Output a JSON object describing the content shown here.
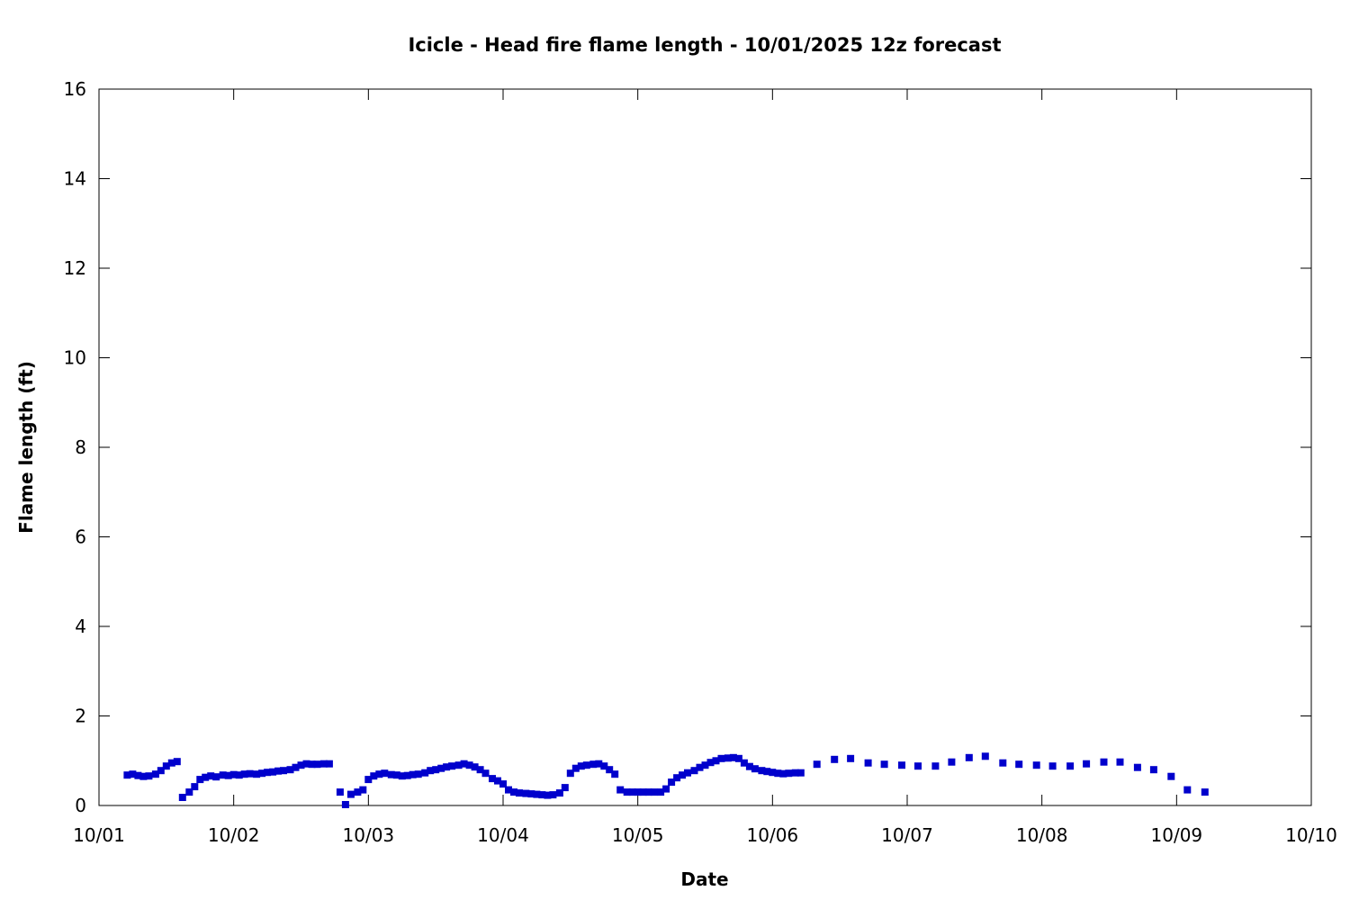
{
  "chart_data": {
    "type": "scatter",
    "title": "Icicle - Head fire flame length - 10/01/2025 12z forecast",
    "xlabel": "Date",
    "ylabel": "Flame length (ft)",
    "x_unit": "days",
    "xlim": [
      0,
      9
    ],
    "ylim": [
      0,
      16
    ],
    "x_ticks": [
      0,
      1,
      2,
      3,
      4,
      5,
      6,
      7,
      8,
      9
    ],
    "x_tick_labels": [
      "10/01",
      "10/02",
      "10/03",
      "10/04",
      "10/05",
      "10/06",
      "10/07",
      "10/08",
      "10/09",
      "10/10"
    ],
    "y_ticks": [
      0,
      2,
      4,
      6,
      8,
      10,
      12,
      14,
      16
    ],
    "y_tick_labels": [
      "0",
      "2",
      "4",
      "6",
      "8",
      "10",
      "12",
      "14",
      "16"
    ],
    "grid": false,
    "marker": "square",
    "color": "#0000cc",
    "series": [
      {
        "x": [
          0.21,
          0.25,
          0.29,
          0.33,
          0.37,
          0.42,
          0.46,
          0.5,
          0.54,
          0.58,
          0.62,
          0.67,
          0.71,
          0.75,
          0.79,
          0.83,
          0.87,
          0.92,
          0.96,
          1.0,
          1.04,
          1.08,
          1.12,
          1.17,
          1.21,
          1.25,
          1.29,
          1.33,
          1.37,
          1.42,
          1.46,
          1.5,
          1.54,
          1.58,
          1.62,
          1.67,
          1.71,
          1.79,
          1.83,
          1.87,
          1.92,
          1.96,
          2.0,
          2.04,
          2.08,
          2.12,
          2.17,
          2.21,
          2.25,
          2.29,
          2.33,
          2.37,
          2.42,
          2.46,
          2.5,
          2.54,
          2.58,
          2.62,
          2.67,
          2.71,
          2.75,
          2.79,
          2.83,
          2.87,
          2.92,
          2.96,
          3.0,
          3.04,
          3.08,
          3.12,
          3.17,
          3.21,
          3.25,
          3.29,
          3.33,
          3.37,
          3.42,
          3.46,
          3.5,
          3.54,
          3.58,
          3.62,
          3.67,
          3.71,
          3.75,
          3.79,
          3.83,
          3.87,
          3.92,
          3.96,
          4.0,
          4.04,
          4.08,
          4.12,
          4.17,
          4.21,
          4.25,
          4.29,
          4.33,
          4.37,
          4.42,
          4.46,
          4.5,
          4.54,
          4.58,
          4.62,
          4.67,
          4.71,
          4.75,
          4.79,
          4.83,
          4.87,
          4.92,
          4.96,
          5.0,
          5.04,
          5.08,
          5.12,
          5.17,
          5.21,
          5.33,
          5.46,
          5.58,
          5.71,
          5.83,
          5.96,
          6.08,
          6.21,
          6.33,
          6.46,
          6.58,
          6.71,
          6.83,
          6.96,
          7.08,
          7.21,
          7.33,
          7.46,
          7.58,
          7.71,
          7.83,
          7.96,
          8.08,
          8.21
        ],
        "y": [
          0.68,
          0.7,
          0.67,
          0.65,
          0.66,
          0.7,
          0.78,
          0.88,
          0.95,
          0.98,
          0.18,
          0.3,
          0.42,
          0.58,
          0.63,
          0.66,
          0.64,
          0.68,
          0.67,
          0.69,
          0.68,
          0.7,
          0.71,
          0.7,
          0.72,
          0.74,
          0.75,
          0.77,
          0.78,
          0.8,
          0.85,
          0.9,
          0.93,
          0.92,
          0.92,
          0.93,
          0.93,
          0.3,
          0.02,
          0.25,
          0.3,
          0.35,
          0.58,
          0.66,
          0.7,
          0.72,
          0.69,
          0.68,
          0.66,
          0.67,
          0.69,
          0.7,
          0.73,
          0.78,
          0.8,
          0.83,
          0.86,
          0.88,
          0.9,
          0.93,
          0.9,
          0.86,
          0.8,
          0.72,
          0.6,
          0.55,
          0.48,
          0.35,
          0.3,
          0.28,
          0.27,
          0.26,
          0.25,
          0.24,
          0.23,
          0.24,
          0.28,
          0.4,
          0.72,
          0.83,
          0.88,
          0.9,
          0.92,
          0.93,
          0.88,
          0.8,
          0.7,
          0.35,
          0.3,
          0.3,
          0.3,
          0.3,
          0.3,
          0.3,
          0.3,
          0.37,
          0.52,
          0.62,
          0.68,
          0.73,
          0.78,
          0.85,
          0.9,
          0.96,
          1.0,
          1.05,
          1.06,
          1.07,
          1.05,
          0.95,
          0.87,
          0.82,
          0.78,
          0.76,
          0.74,
          0.72,
          0.71,
          0.72,
          0.73,
          0.73,
          0.92,
          1.03,
          1.05,
          0.95,
          0.92,
          0.9,
          0.88,
          0.88,
          0.97,
          1.07,
          1.1,
          0.95,
          0.92,
          0.9,
          0.88,
          0.88,
          0.93,
          0.97,
          0.97,
          0.85,
          0.8,
          0.65,
          0.35,
          0.3
        ]
      }
    ]
  }
}
